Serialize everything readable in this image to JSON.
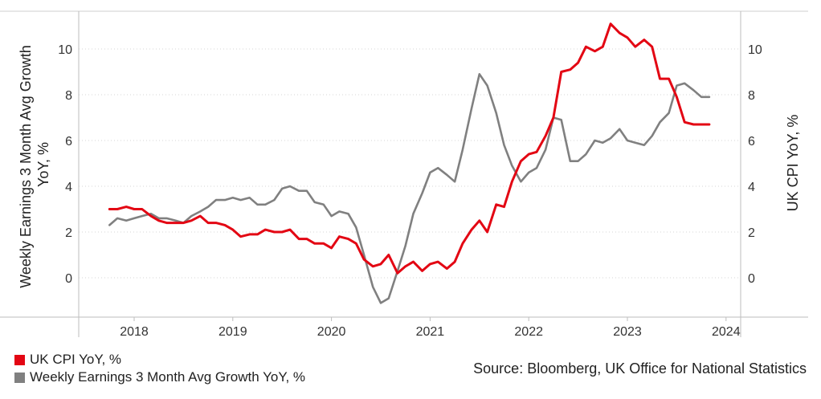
{
  "chart_data": {
    "type": "line",
    "x_ticks": [
      "2018",
      "2019",
      "2020",
      "2021",
      "2022",
      "2023",
      "2024"
    ],
    "left_axis": {
      "title_lines": [
        "Weekly Earnings 3 Month Avg Growth",
        "YoY, %"
      ],
      "ticks": [
        0,
        2,
        4,
        6,
        8,
        10
      ],
      "range": [
        -1.7,
        11.4
      ]
    },
    "right_axis": {
      "title": "UK CPI YoY, %",
      "ticks": [
        0,
        2,
        4,
        6,
        8,
        10
      ],
      "range": [
        -1.7,
        11.4
      ]
    },
    "grid": true,
    "series": [
      {
        "name": "UK CPI YoY, %",
        "color": "#e30613",
        "axis": "right",
        "x": [
          2017.75,
          2017.83,
          2017.92,
          2018.0,
          2018.08,
          2018.17,
          2018.25,
          2018.33,
          2018.42,
          2018.5,
          2018.58,
          2018.67,
          2018.75,
          2018.83,
          2018.92,
          2019.0,
          2019.08,
          2019.17,
          2019.25,
          2019.33,
          2019.42,
          2019.5,
          2019.58,
          2019.67,
          2019.75,
          2019.83,
          2019.92,
          2020.0,
          2020.08,
          2020.17,
          2020.25,
          2020.33,
          2020.42,
          2020.5,
          2020.58,
          2020.67,
          2020.75,
          2020.83,
          2020.92,
          2021.0,
          2021.08,
          2021.17,
          2021.25,
          2021.33,
          2021.42,
          2021.5,
          2021.58,
          2021.67,
          2021.75,
          2021.83,
          2021.92,
          2022.0,
          2022.08,
          2022.17,
          2022.25,
          2022.33,
          2022.42,
          2022.5,
          2022.58,
          2022.67,
          2022.75,
          2022.83,
          2022.92,
          2023.0,
          2023.08,
          2023.17,
          2023.25,
          2023.33,
          2023.42,
          2023.5,
          2023.58,
          2023.67,
          2023.75,
          2023.83
        ],
        "values": [
          3.0,
          3.0,
          3.1,
          3.0,
          3.0,
          2.7,
          2.5,
          2.4,
          2.4,
          2.4,
          2.5,
          2.7,
          2.4,
          2.4,
          2.3,
          2.1,
          1.8,
          1.9,
          1.9,
          2.1,
          2.0,
          2.0,
          2.1,
          1.7,
          1.7,
          1.5,
          1.5,
          1.3,
          1.8,
          1.7,
          1.5,
          0.8,
          0.5,
          0.6,
          1.0,
          0.2,
          0.5,
          0.7,
          0.3,
          0.6,
          0.7,
          0.4,
          0.7,
          1.5,
          2.1,
          2.5,
          2.0,
          3.2,
          3.1,
          4.2,
          5.1,
          5.4,
          5.5,
          6.2,
          7.0,
          9.0,
          9.1,
          9.4,
          10.1,
          9.9,
          10.1,
          11.1,
          10.7,
          10.5,
          10.1,
          10.4,
          10.1,
          8.7,
          8.7,
          7.9,
          6.8,
          6.7,
          6.7,
          6.7
        ]
      },
      {
        "name": "Weekly Earnings 3 Month Avg Growth YoY, %",
        "color": "#808080",
        "axis": "left",
        "x": [
          2017.75,
          2017.83,
          2017.92,
          2018.0,
          2018.08,
          2018.17,
          2018.25,
          2018.33,
          2018.42,
          2018.5,
          2018.58,
          2018.67,
          2018.75,
          2018.83,
          2018.92,
          2019.0,
          2019.08,
          2019.17,
          2019.25,
          2019.33,
          2019.42,
          2019.5,
          2019.58,
          2019.67,
          2019.75,
          2019.83,
          2019.92,
          2020.0,
          2020.08,
          2020.17,
          2020.25,
          2020.33,
          2020.42,
          2020.5,
          2020.58,
          2020.67,
          2020.75,
          2020.83,
          2020.92,
          2021.0,
          2021.08,
          2021.17,
          2021.25,
          2021.33,
          2021.42,
          2021.5,
          2021.58,
          2021.67,
          2021.75,
          2021.83,
          2021.92,
          2022.0,
          2022.08,
          2022.17,
          2022.25,
          2022.33,
          2022.42,
          2022.5,
          2022.58,
          2022.67,
          2022.75,
          2022.83,
          2022.92,
          2023.0,
          2023.08,
          2023.17,
          2023.25,
          2023.33,
          2023.42,
          2023.5,
          2023.58,
          2023.67,
          2023.75,
          2023.83
        ],
        "values": [
          2.3,
          2.6,
          2.5,
          2.6,
          2.7,
          2.8,
          2.6,
          2.6,
          2.5,
          2.4,
          2.7,
          2.9,
          3.1,
          3.4,
          3.4,
          3.5,
          3.4,
          3.5,
          3.2,
          3.2,
          3.4,
          3.9,
          4.0,
          3.8,
          3.8,
          3.3,
          3.2,
          2.7,
          2.9,
          2.8,
          2.2,
          1.0,
          -0.4,
          -1.1,
          -0.9,
          0.3,
          1.4,
          2.8,
          3.7,
          4.6,
          4.8,
          4.5,
          4.2,
          5.6,
          7.4,
          8.9,
          8.4,
          7.2,
          5.8,
          4.9,
          4.2,
          4.6,
          4.8,
          5.6,
          7.0,
          6.9,
          5.1,
          5.1,
          5.4,
          6.0,
          5.9,
          6.1,
          6.5,
          6.0,
          5.9,
          5.8,
          6.2,
          6.8,
          7.2,
          8.4,
          8.5,
          8.2,
          7.9,
          7.9
        ]
      }
    ]
  },
  "legend": {
    "items": [
      {
        "label": "UK CPI YoY, %",
        "color": "#e30613"
      },
      {
        "label": "Weekly Earnings 3 Month Avg Growth YoY, %",
        "color": "#808080"
      }
    ]
  },
  "source": "Source: Bloomberg, UK Office for National Statistics"
}
